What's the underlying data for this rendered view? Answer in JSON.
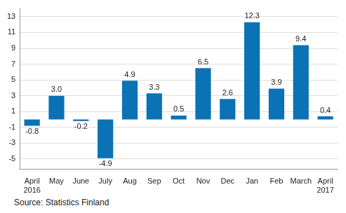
{
  "chart_data": {
    "type": "bar",
    "source": "Source: Statistics Finland",
    "categories": [
      "April 2016",
      "May",
      "June",
      "July",
      "Aug",
      "Sep",
      "Oct",
      "Nov",
      "Dec",
      "Jan",
      "Feb",
      "March",
      "April 2017"
    ],
    "values": [
      -0.8,
      3.0,
      -0.2,
      -4.9,
      4.9,
      3.3,
      0.5,
      6.5,
      2.6,
      12.3,
      3.9,
      9.4,
      0.4
    ],
    "value_labels": [
      "-0.8",
      "3.0",
      "-0.2",
      "-4.9",
      "4.9",
      "3.3",
      "0.5",
      "6.5",
      "2.6",
      "12.3",
      "3.9",
      "9.4",
      "0.4"
    ],
    "color": "#0a72b5",
    "ylim": [
      -6.3,
      14
    ],
    "yticks": [
      -5,
      -3,
      -1,
      1,
      3,
      5,
      7,
      9,
      11,
      13
    ],
    "grid": true,
    "data_labels": true
  }
}
